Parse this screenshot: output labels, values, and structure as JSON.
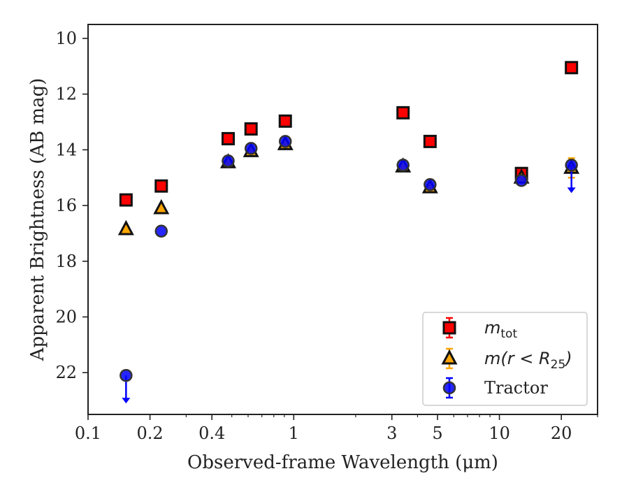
{
  "chart_data": {
    "type": "scatter",
    "xlabel": "Observed-frame Wavelength (μm)",
    "ylabel": "Apparent Brightness (AB mag)",
    "x_scale": "log",
    "xlim": [
      0.1,
      30
    ],
    "ylim": [
      23.5,
      9.5
    ],
    "y_inverted": true,
    "x_ticks": [
      {
        "value": 0.1,
        "label": "0.1"
      },
      {
        "value": 0.2,
        "label": "0.2"
      },
      {
        "value": 0.4,
        "label": "0.4"
      },
      {
        "value": 1,
        "label": "1"
      },
      {
        "value": 3,
        "label": "3"
      },
      {
        "value": 5,
        "label": "5"
      },
      {
        "value": 10,
        "label": "10"
      },
      {
        "value": 20,
        "label": "20"
      }
    ],
    "y_ticks": [
      {
        "value": 10,
        "label": "10"
      },
      {
        "value": 12,
        "label": "12"
      },
      {
        "value": 14,
        "label": "14"
      },
      {
        "value": 16,
        "label": "16"
      },
      {
        "value": 18,
        "label": "18"
      },
      {
        "value": 20,
        "label": "20"
      },
      {
        "value": 22,
        "label": "22"
      }
    ],
    "grid": false,
    "legend_position": "bottom-right",
    "series": [
      {
        "name": "m_tot",
        "marker": "square",
        "color": "#ff0000",
        "points": [
          {
            "x": 0.153,
            "y": 15.8
          },
          {
            "x": 0.227,
            "y": 15.3
          },
          {
            "x": 0.48,
            "y": 13.6
          },
          {
            "x": 0.62,
            "y": 13.25
          },
          {
            "x": 0.91,
            "y": 12.97
          },
          {
            "x": 3.4,
            "y": 12.67
          },
          {
            "x": 4.6,
            "y": 13.7
          },
          {
            "x": 12.8,
            "y": 14.85
          },
          {
            "x": 22.4,
            "y": 11.05
          }
        ]
      },
      {
        "name": "m(r < R25)",
        "marker": "triangle",
        "color": "#ffa500",
        "points": [
          {
            "x": 0.153,
            "y": 16.85
          },
          {
            "x": 0.227,
            "y": 16.1
          },
          {
            "x": 0.48,
            "y": 14.45
          },
          {
            "x": 0.62,
            "y": 14.05
          },
          {
            "x": 0.91,
            "y": 13.8
          },
          {
            "x": 3.4,
            "y": 14.6
          },
          {
            "x": 4.6,
            "y": 15.35
          },
          {
            "x": 12.8,
            "y": 15.0
          },
          {
            "x": 22.4,
            "y": 14.65,
            "err": 0.35
          }
        ]
      },
      {
        "name": "Tractor",
        "marker": "circle",
        "color": "#0000ff",
        "points": [
          {
            "x": 0.153,
            "y": 22.1,
            "upper_limit": true
          },
          {
            "x": 0.227,
            "y": 16.92
          },
          {
            "x": 0.48,
            "y": 14.4
          },
          {
            "x": 0.62,
            "y": 13.95
          },
          {
            "x": 0.91,
            "y": 13.7
          },
          {
            "x": 3.4,
            "y": 14.55
          },
          {
            "x": 4.6,
            "y": 15.25
          },
          {
            "x": 12.8,
            "y": 15.1
          },
          {
            "x": 22.4,
            "y": 14.55,
            "upper_limit": true
          }
        ]
      }
    ]
  }
}
